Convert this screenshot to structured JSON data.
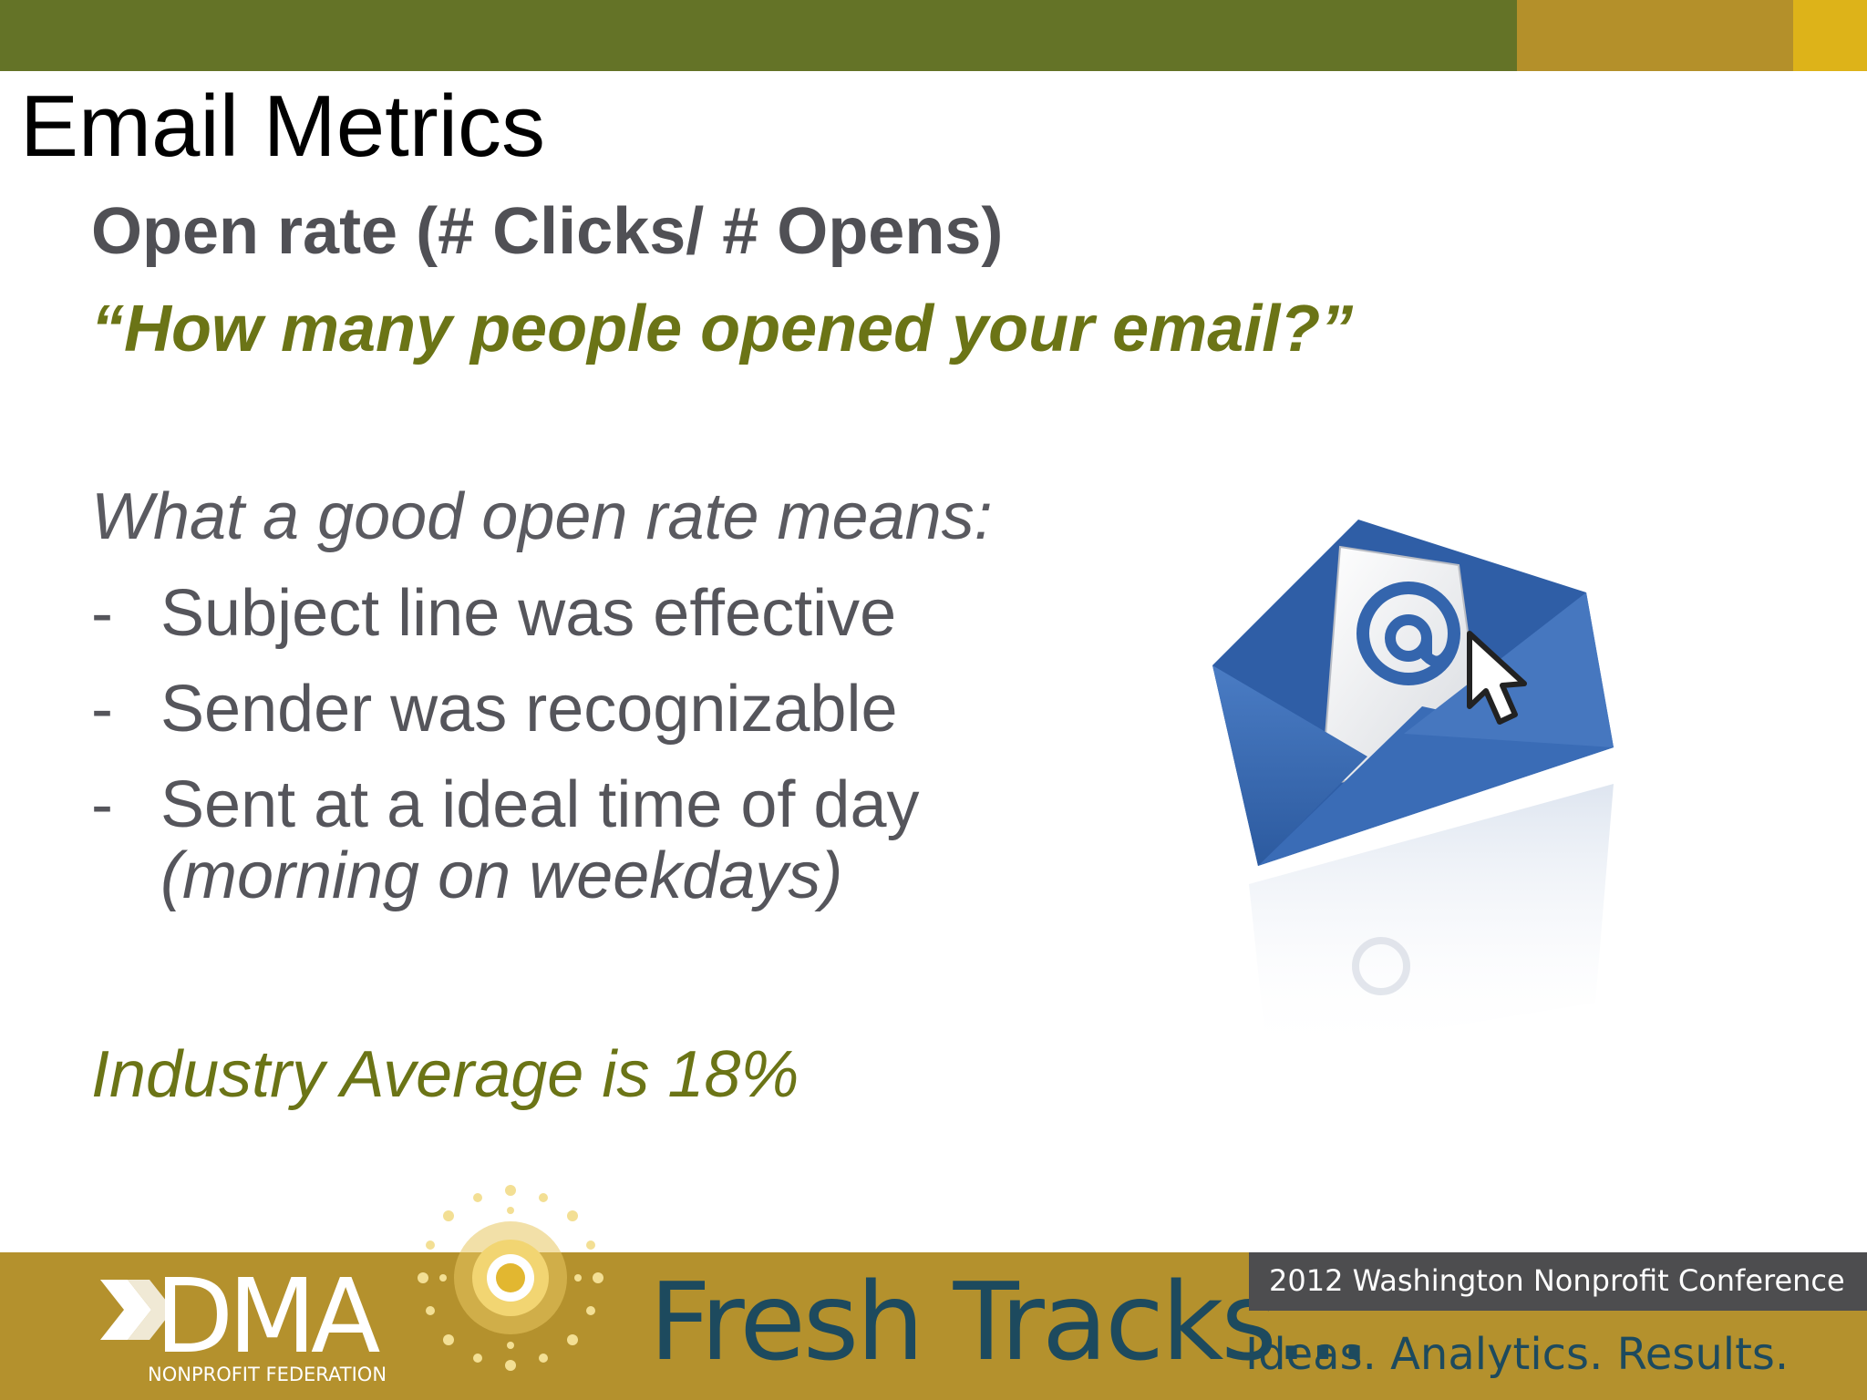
{
  "slide": {
    "title": "Email Metrics",
    "subhead": "Open rate (# Clicks/ # Opens)",
    "quote": "“How many people opened your email?”",
    "means_heading": "What a good open rate means:",
    "bullets": [
      {
        "dash": "-",
        "text": "Subject line was effective"
      },
      {
        "dash": "-",
        "text": "Sender was recognizable"
      },
      {
        "dash": "-",
        "text": "Sent at a ideal time of day",
        "sub": "(morning on weekdays)"
      }
    ],
    "industry_average": "Industry Average is 18%",
    "illustration_icons": [
      "envelope-icon",
      "at-sign-icon",
      "cursor-arrow-icon"
    ]
  },
  "footer": {
    "logo_word": "DMA",
    "logo_sub": "NONPROFIT FEDERATION",
    "brand": "Fresh Tracks...",
    "conference": "2012 Washington Nonprofit Conference",
    "tagline": "Ideas. Analytics. Results."
  },
  "colors": {
    "olive": "#647327",
    "gold": "#b4912d",
    "bright_gold": "#ddb319",
    "accent_text": "#6b7416",
    "body_text": "#55555b",
    "navy": "#1d4a5e",
    "envelope_blue": "#3465ad"
  }
}
